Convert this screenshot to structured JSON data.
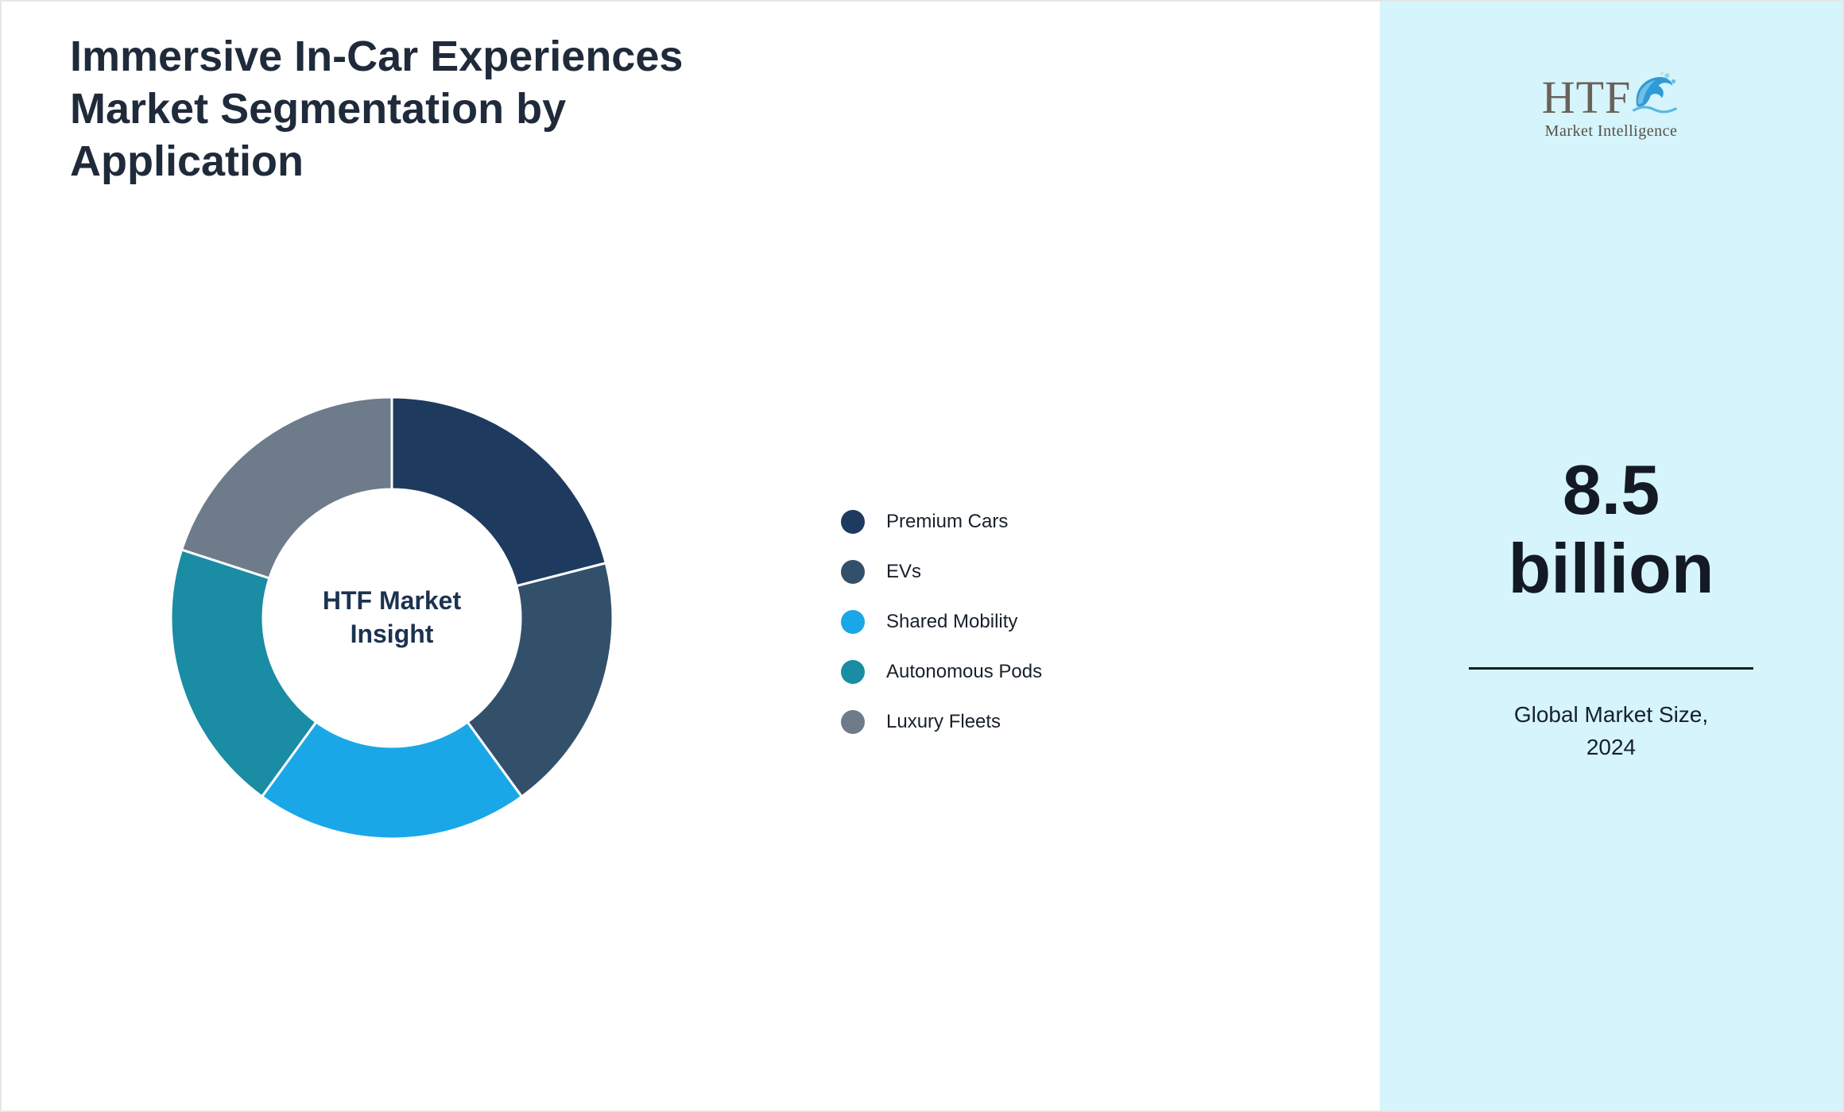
{
  "page": {
    "title": "Immersive In-Car Experiences Market Segmentation by Application",
    "title_lines": [
      "Immersive In-Car Experiences",
      "Market Segmentation by",
      "Application"
    ]
  },
  "chart_data": {
    "type": "pie",
    "subtype": "donut",
    "title": "Immersive In-Car Experiences Market Segmentation by Application",
    "center_label": "HTF Market Insight",
    "center_label_lines": [
      "HTF Market",
      "Insight"
    ],
    "categories": [
      "Premium Cars",
      "EVs",
      "Shared Mobility",
      "Autonomous Pods",
      "Luxury Fleets"
    ],
    "values": [
      21,
      19,
      20,
      20,
      20
    ],
    "unit": "percent",
    "colors": [
      "#1e3a5f",
      "#33506b",
      "#1aa7e8",
      "#1a8ca3",
      "#6e7b8a"
    ],
    "legend_position": "right",
    "start_angle_deg": -90,
    "direction": "clockwise"
  },
  "sidebar": {
    "background_color": "#d5f4fb",
    "logo": {
      "text": "HTF",
      "subtext": "Market Intelligence",
      "icon": "dolphin-splash-icon",
      "icon_color": "#2e9bd6"
    },
    "stat": {
      "value": "8.5 billion",
      "value_lines": [
        "8.5",
        "billion"
      ],
      "caption": "Global Market Size, 2024",
      "caption_lines": [
        "Global Market Size,",
        "2024"
      ]
    }
  }
}
